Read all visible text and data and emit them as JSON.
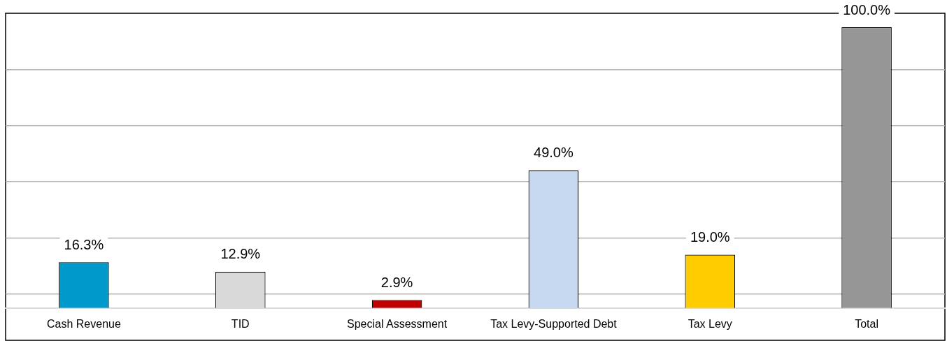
{
  "chart_data": {
    "type": "bar",
    "categories": [
      "Cash Revenue",
      "TID",
      "Special Assessment",
      "Tax Levy-Supported Debt",
      "Tax Levy",
      "Total"
    ],
    "values": [
      16.3,
      12.9,
      2.9,
      49.0,
      19.0,
      100.0
    ],
    "value_labels": [
      "16.3%",
      "12.9%",
      "2.9%",
      "49.0%",
      "19.0%",
      "100.0%"
    ],
    "colors": [
      "#0099cc",
      "#d9d9d9",
      "#c00000",
      "#c6d9f0",
      "#ffcc00",
      "#969696"
    ],
    "ylim": [
      0,
      105
    ],
    "yticks": [
      {
        "value": 5,
        "label": null
      },
      {
        "value": 25,
        "label": null
      },
      {
        "value": 45,
        "label": null
      },
      {
        "value": 65,
        "label": null
      },
      {
        "value": 85,
        "label": null
      }
    ],
    "grid": "y",
    "tick_labels": "x",
    "legend": false
  }
}
